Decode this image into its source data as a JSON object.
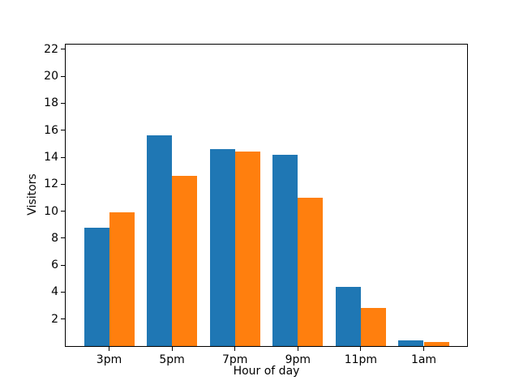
{
  "figure": {
    "background": "#ffffff"
  },
  "chart_data": {
    "type": "bar",
    "title": "",
    "xlabel": "Hour of day",
    "ylabel": "Visitors",
    "categories": [
      "3pm",
      "5pm",
      "7pm",
      "9pm",
      "11pm",
      "1am"
    ],
    "series": [
      {
        "name": "blue-series",
        "color": "#1f77b4",
        "values": [
          8.8,
          15.6,
          14.6,
          14.2,
          4.4,
          0.4
        ]
      },
      {
        "name": "orange-series",
        "color": "#ff7f0e",
        "values": [
          9.9,
          12.6,
          14.4,
          11.0,
          2.8,
          0.3
        ]
      }
    ],
    "bar_width": 0.4,
    "series_offsets": [
      -0.2,
      0.2
    ],
    "xlim": [
      -0.69,
      5.69
    ],
    "ylim": [
      0,
      22.35
    ],
    "yticks": [
      2,
      4,
      6,
      8,
      10,
      12,
      14,
      16,
      18,
      20,
      22
    ],
    "grid": false,
    "legend": "none",
    "axis_color": "#000000",
    "text_color": "#000000"
  }
}
